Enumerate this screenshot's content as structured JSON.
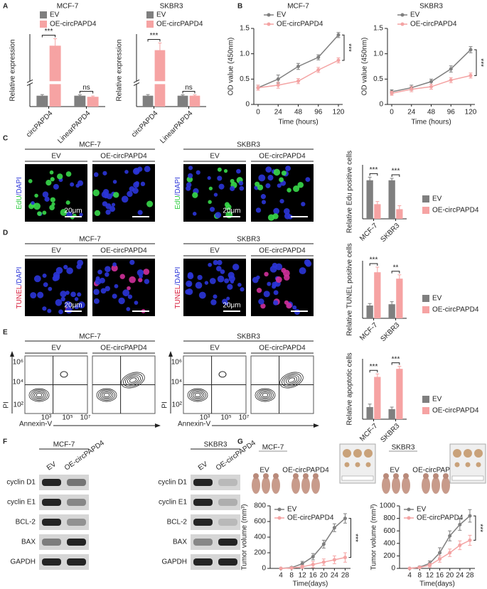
{
  "chart_data": [
    {
      "type": "bar",
      "title": "MCF-7",
      "y_label": "Relative expression",
      "categories": [
        "circPAPD4",
        "LinearPAPD4"
      ],
      "series": [
        {
          "name": "EV",
          "color": "#7f7f7f",
          "values": [
            1.0,
            1.0
          ],
          "errors": [
            0.1,
            0.08
          ]
        },
        {
          "name": "OE-circPAPD4",
          "color": "#f6a3a3",
          "values": [
            19.5,
            0.9
          ],
          "errors": [
            1.5,
            0.07
          ]
        }
      ],
      "ylim": [
        0,
        22
      ],
      "axis_break": [
        2,
        12
      ],
      "annotations": [
        "***",
        "ns"
      ],
      "legend": "top"
    },
    {
      "type": "bar",
      "title": "SKBR3",
      "y_label": "Relative expression",
      "categories": [
        "circPAPD4",
        "LinearPAPD4"
      ],
      "series": [
        {
          "name": "EV",
          "color": "#7f7f7f",
          "values": [
            1.0,
            1.0
          ],
          "errors": [
            0.1,
            0.08
          ]
        },
        {
          "name": "OE-circPAPD4",
          "color": "#f6a3a3",
          "values": [
            28.5,
            1.0
          ],
          "errors": [
            2.0,
            0.08
          ]
        }
      ],
      "ylim": [
        0,
        33
      ],
      "axis_break": [
        2,
        20
      ],
      "annotations": [
        "***",
        "ns"
      ],
      "legend": "top"
    },
    {
      "type": "line",
      "title": "MCF-7",
      "y_label": "OD value (450nm)",
      "x_label": "Time (hours)",
      "categories": [
        "0",
        "24",
        "48",
        "96",
        "120"
      ],
      "series": [
        {
          "name": "EV",
          "color": "#7f7f7f",
          "values": [
            0.33,
            0.5,
            0.75,
            0.93,
            1.37
          ],
          "errors": [
            0.05,
            0.08,
            0.06,
            0.05,
            0.05
          ]
        },
        {
          "name": "OE-circPAPD4",
          "color": "#f4a3a3",
          "values": [
            0.33,
            0.38,
            0.46,
            0.68,
            0.87
          ],
          "errors": [
            0.05,
            0.06,
            0.05,
            0.05,
            0.05
          ]
        }
      ],
      "ylim": [
        0,
        1.5
      ],
      "yticks": [
        0,
        0.5,
        {
          "value": 1,
          "label": "1.0"
        },
        1.5
      ],
      "annotations": [
        "***"
      ],
      "legend": "top"
    },
    {
      "type": "line",
      "title": "SKBR3",
      "y_label": "OD value (450nm)",
      "x_label": "Time (hours)",
      "categories": [
        "0",
        "24",
        "48",
        "96",
        "120"
      ],
      "series": [
        {
          "name": "EV",
          "color": "#7f7f7f",
          "values": [
            0.25,
            0.33,
            0.45,
            0.7,
            1.08
          ],
          "errors": [
            0.04,
            0.05,
            0.05,
            0.06,
            0.06
          ]
        },
        {
          "name": "OE-circPAPD4",
          "color": "#f4a3a3",
          "values": [
            0.22,
            0.3,
            0.35,
            0.48,
            0.57
          ],
          "errors": [
            0.04,
            0.05,
            0.05,
            0.05,
            0.05
          ]
        }
      ],
      "ylim": [
        0,
        1.5
      ],
      "yticks": [
        0,
        0.5,
        {
          "value": 1,
          "label": "1.0"
        },
        1.5
      ],
      "annotations": [
        "***"
      ],
      "legend": "top"
    },
    {
      "type": "bar",
      "y_label": "Relative Edu positive cells",
      "categories": [
        "MCF-7",
        "SKBR3"
      ],
      "series": [
        {
          "name": "EV",
          "color": "#7f7f7f",
          "values": [
            1.0,
            1.0
          ],
          "errors": [
            0.08,
            0.05
          ]
        },
        {
          "name": "OE-circPAPD4",
          "color": "#f6a3a3",
          "values": [
            0.38,
            0.25
          ],
          "errors": [
            0.07,
            0.09
          ]
        }
      ],
      "ylim": [
        0,
        1.4
      ],
      "annotations": [
        "***",
        "***"
      ],
      "legend": "right"
    },
    {
      "type": "bar",
      "y_label": "Relative TUNEL positive cells",
      "categories": [
        "MCF-7",
        "SKBR3"
      ],
      "series": [
        {
          "name": "EV",
          "color": "#7f7f7f",
          "values": [
            1.0,
            1.1
          ],
          "errors": [
            0.15,
            0.2
          ]
        },
        {
          "name": "OE-circPAPD4",
          "color": "#f6a3a3",
          "values": [
            3.6,
            3.1
          ],
          "errors": [
            0.4,
            0.3
          ]
        }
      ],
      "ylim": [
        0,
        4.5
      ],
      "annotations": [
        "***",
        "**"
      ],
      "legend": "right"
    },
    {
      "type": "bar",
      "y_label": "Relative apoptotic cells",
      "categories": [
        "MCF-7",
        "SKBR3"
      ],
      "series": [
        {
          "name": "EV",
          "color": "#7f7f7f",
          "values": [
            1.2,
            1.0
          ],
          "errors": [
            0.3,
            0.2
          ]
        },
        {
          "name": "OE-circPAPD4",
          "color": "#f6a3a3",
          "values": [
            4.2,
            5.0
          ],
          "errors": [
            0.3,
            0.25
          ]
        }
      ],
      "ylim": [
        0,
        6
      ],
      "annotations": [
        "***",
        "***"
      ],
      "legend": "right"
    },
    {
      "type": "line",
      "y_label": "Tumor volume (mm³)",
      "x_label": "Time(days)",
      "x": [
        4,
        8,
        12,
        16,
        20,
        24,
        28
      ],
      "xlim": [
        0,
        30
      ],
      "xticks": [
        4,
        8,
        12,
        16,
        20,
        24,
        28
      ],
      "series": [
        {
          "name": "EV",
          "color": "#7f7f7f",
          "values": [
            0,
            10,
            60,
            150,
            310,
            520,
            640
          ],
          "errors": [
            5,
            10,
            30,
            40,
            50,
            50,
            60
          ]
        },
        {
          "name": "OE-circPAPD4",
          "color": "#f4a3a3",
          "values": [
            0,
            5,
            20,
            50,
            80,
            110,
            140
          ],
          "errors": [
            3,
            10,
            20,
            40,
            40,
            50,
            60
          ]
        }
      ],
      "ylim": [
        0,
        800
      ],
      "yticks": [
        0,
        200,
        400,
        600,
        800
      ],
      "annotations": [
        "***"
      ],
      "legend": "upper left"
    },
    {
      "type": "line",
      "y_label": "Tumor volume (mm³)",
      "x_label": "Time(days)",
      "x": [
        4,
        8,
        12,
        16,
        20,
        24,
        28
      ],
      "xlim": [
        0,
        30
      ],
      "xticks": [
        4,
        8,
        12,
        16,
        20,
        24,
        28
      ],
      "series": [
        {
          "name": "EV",
          "color": "#7f7f7f",
          "values": [
            0,
            20,
            80,
            250,
            520,
            700,
            840
          ],
          "errors": [
            5,
            15,
            40,
            80,
            80,
            90,
            100
          ]
        },
        {
          "name": "OE-circPAPD4",
          "color": "#f4a3a3",
          "values": [
            0,
            15,
            50,
            150,
            250,
            370,
            450
          ],
          "errors": [
            3,
            10,
            30,
            50,
            60,
            70,
            80
          ]
        }
      ],
      "ylim": [
        0,
        1000
      ],
      "yticks": [
        0,
        200,
        400,
        600,
        800,
        1000
      ],
      "annotations": [
        "***"
      ],
      "legend": "upper left"
    }
  ],
  "panel_labels": [
    "A",
    "B",
    "C",
    "D",
    "E",
    "F",
    "G"
  ],
  "edu_panel": {
    "groups": [
      "MCF-7",
      "SKBR3"
    ],
    "conditions": [
      "EV",
      "OE-circPAPD4"
    ],
    "stain": [
      "EdU",
      "/DAPI"
    ],
    "scale_bar": "20μm"
  },
  "tunel_panel": {
    "groups": [
      "MCF-7",
      "SKBR3"
    ],
    "conditions": [
      "EV",
      "OE-circPAPD4"
    ],
    "stain": [
      "TUNEL",
      "/DAPI"
    ],
    "scale_bar": "20μm"
  },
  "flow_panel": {
    "groups": [
      "MCF-7",
      "SKBR3"
    ],
    "conditions": [
      "EV",
      "OE-circPAPD4"
    ],
    "y_axis": "PI",
    "x_axis": "Annexin-V",
    "y_ticks": [
      "10⁶",
      "10⁴",
      "10²"
    ],
    "x_ticks": [
      "10³",
      "10⁵",
      "10⁷"
    ]
  },
  "blot_panel": {
    "groups": [
      "MCF-7",
      "SKBR3"
    ],
    "conditions": [
      "EV",
      "OE-circPAPD4"
    ],
    "proteins": [
      "cyclin D1",
      "cyclin E1",
      "BCL-2",
      "BAX",
      "GAPDH"
    ]
  },
  "xenograft_panel": {
    "groups": [
      "MCF-7",
      "SKBR3"
    ],
    "conditions": [
      "EV",
      "OE-circPAPD4"
    ]
  }
}
